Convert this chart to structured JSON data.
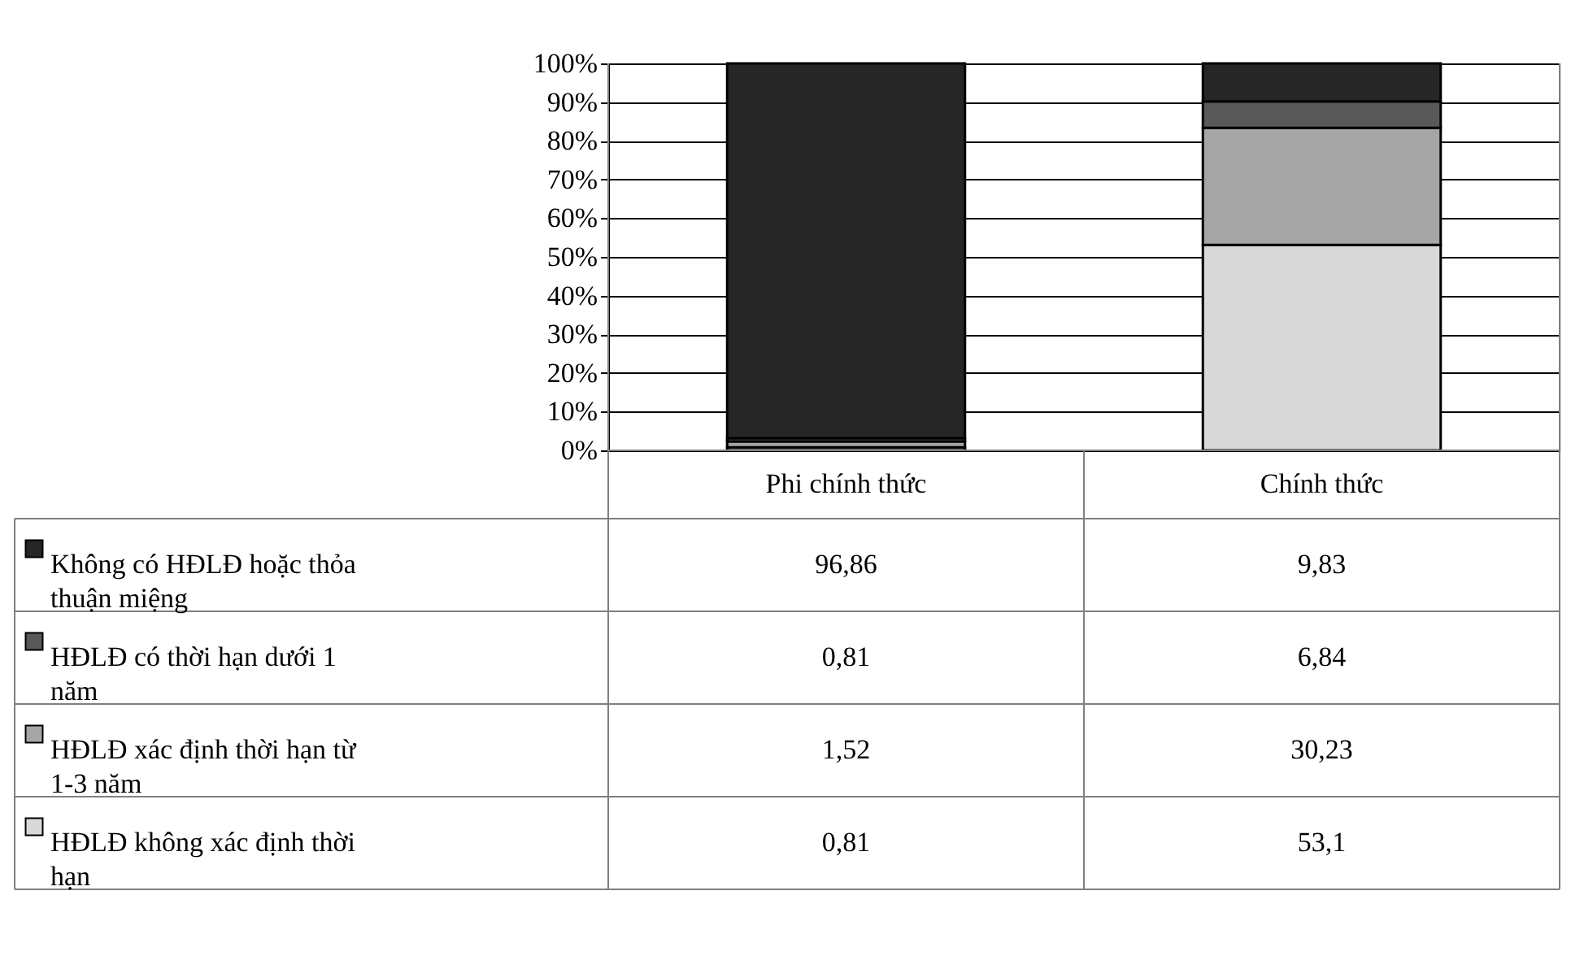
{
  "chart_data": {
    "type": "bar",
    "stacked": true,
    "categories": [
      "Phi chính thức",
      "Chính thức"
    ],
    "series": [
      {
        "name": "HĐLĐ không xác định thời hạn",
        "color": "#d9d9d9",
        "values": [
          0.81,
          53.1
        ],
        "value_labels": [
          "0,81",
          "53,1"
        ]
      },
      {
        "name": "HĐLĐ xác định thời hạn từ 1-3 năm",
        "color": "#a6a6a6",
        "values": [
          1.52,
          30.23
        ],
        "value_labels": [
          "1,52",
          "30,23"
        ]
      },
      {
        "name": "HĐLĐ có thời hạn dưới 1 năm",
        "color": "#595959",
        "values": [
          0.81,
          6.84
        ],
        "value_labels": [
          "0,81",
          "6,84"
        ]
      },
      {
        "name": "Không có HĐLĐ hoặc thỏa thuận miệng",
        "color": "#262626",
        "values": [
          96.86,
          9.83
        ],
        "value_labels": [
          "96,86",
          "9,83"
        ]
      }
    ],
    "ylim": [
      0,
      100
    ],
    "yticks": [
      {
        "value": 0,
        "label": "0%"
      },
      {
        "value": 10,
        "label": "10%"
      },
      {
        "value": 20,
        "label": "20%"
      },
      {
        "value": 30,
        "label": "30%"
      },
      {
        "value": 40,
        "label": "40%"
      },
      {
        "value": 50,
        "label": "50%"
      },
      {
        "value": 60,
        "label": "60%"
      },
      {
        "value": 70,
        "label": "70%"
      },
      {
        "value": 80,
        "label": "80%"
      },
      {
        "value": 90,
        "label": "90%"
      },
      {
        "value": 100,
        "label": "100%"
      }
    ],
    "grid": "y",
    "legend": "bottom"
  }
}
